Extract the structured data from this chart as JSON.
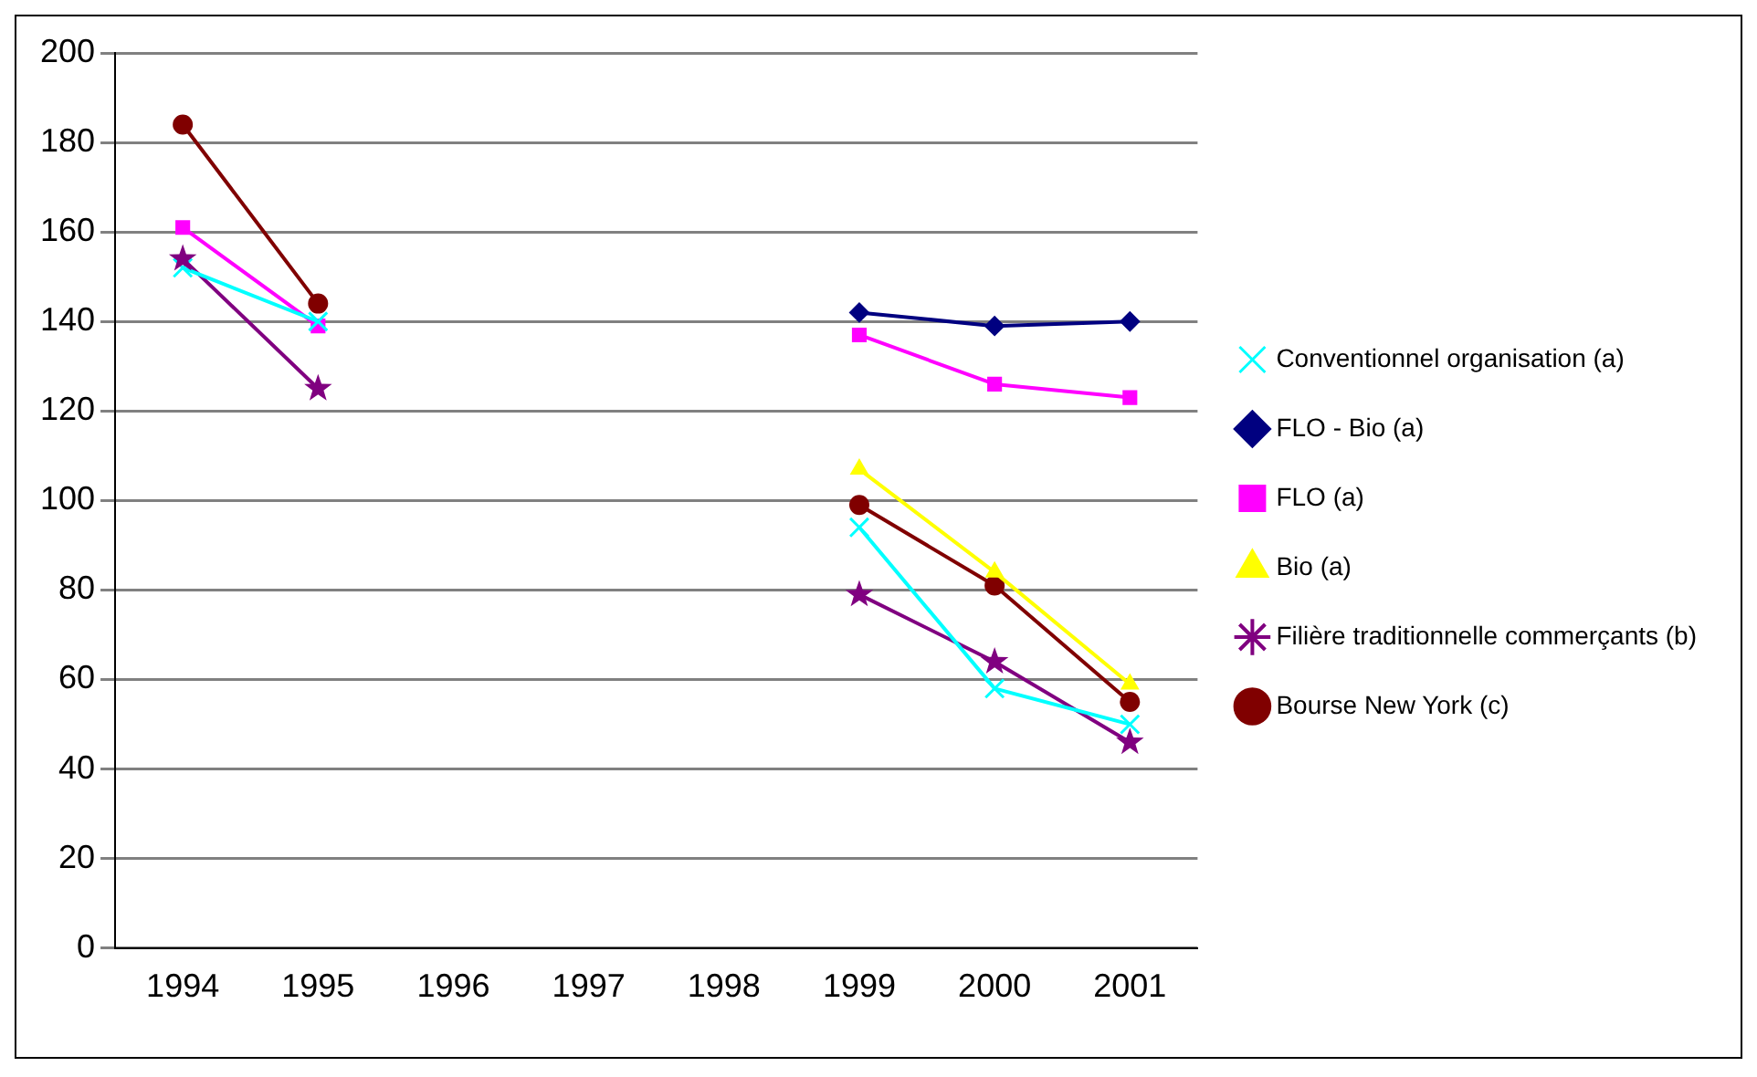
{
  "chart_data": {
    "type": "line",
    "categories": [
      "1994",
      "1995",
      "1996",
      "1997",
      "1998",
      "1999",
      "2000",
      "2001"
    ],
    "ylim": [
      0,
      200
    ],
    "yticks": [
      0,
      20,
      40,
      60,
      80,
      100,
      120,
      140,
      160,
      180,
      200
    ],
    "grid": "y",
    "legend": "right",
    "series": [
      {
        "name": "FLO - Bio (a)",
        "color": "#000080",
        "marker": "diamond",
        "values": [
          null,
          null,
          null,
          null,
          null,
          142,
          139,
          140
        ]
      },
      {
        "name": "FLO (a)",
        "color": "#ff00ff",
        "marker": "square",
        "values": [
          161,
          139,
          null,
          null,
          null,
          137,
          126,
          123
        ]
      },
      {
        "name": "Bio (a)",
        "color": "#ffff00",
        "marker": "triangle",
        "values": [
          null,
          null,
          null,
          null,
          null,
          107,
          84,
          59
        ]
      },
      {
        "name": "Conventionnel organisation (a)",
        "color": "#00ffff",
        "marker": "cross",
        "values": [
          152,
          140,
          null,
          null,
          null,
          94,
          58,
          50
        ]
      },
      {
        "name": "Filière traditionnelle commerçants (b)",
        "color": "#800080",
        "marker": "star",
        "values": [
          154,
          125,
          null,
          null,
          null,
          79,
          64,
          46
        ]
      },
      {
        "name": "Bourse New York (c)",
        "color": "#800000",
        "marker": "circle",
        "values": [
          184,
          144,
          null,
          null,
          null,
          99,
          81,
          55
        ]
      }
    ]
  }
}
